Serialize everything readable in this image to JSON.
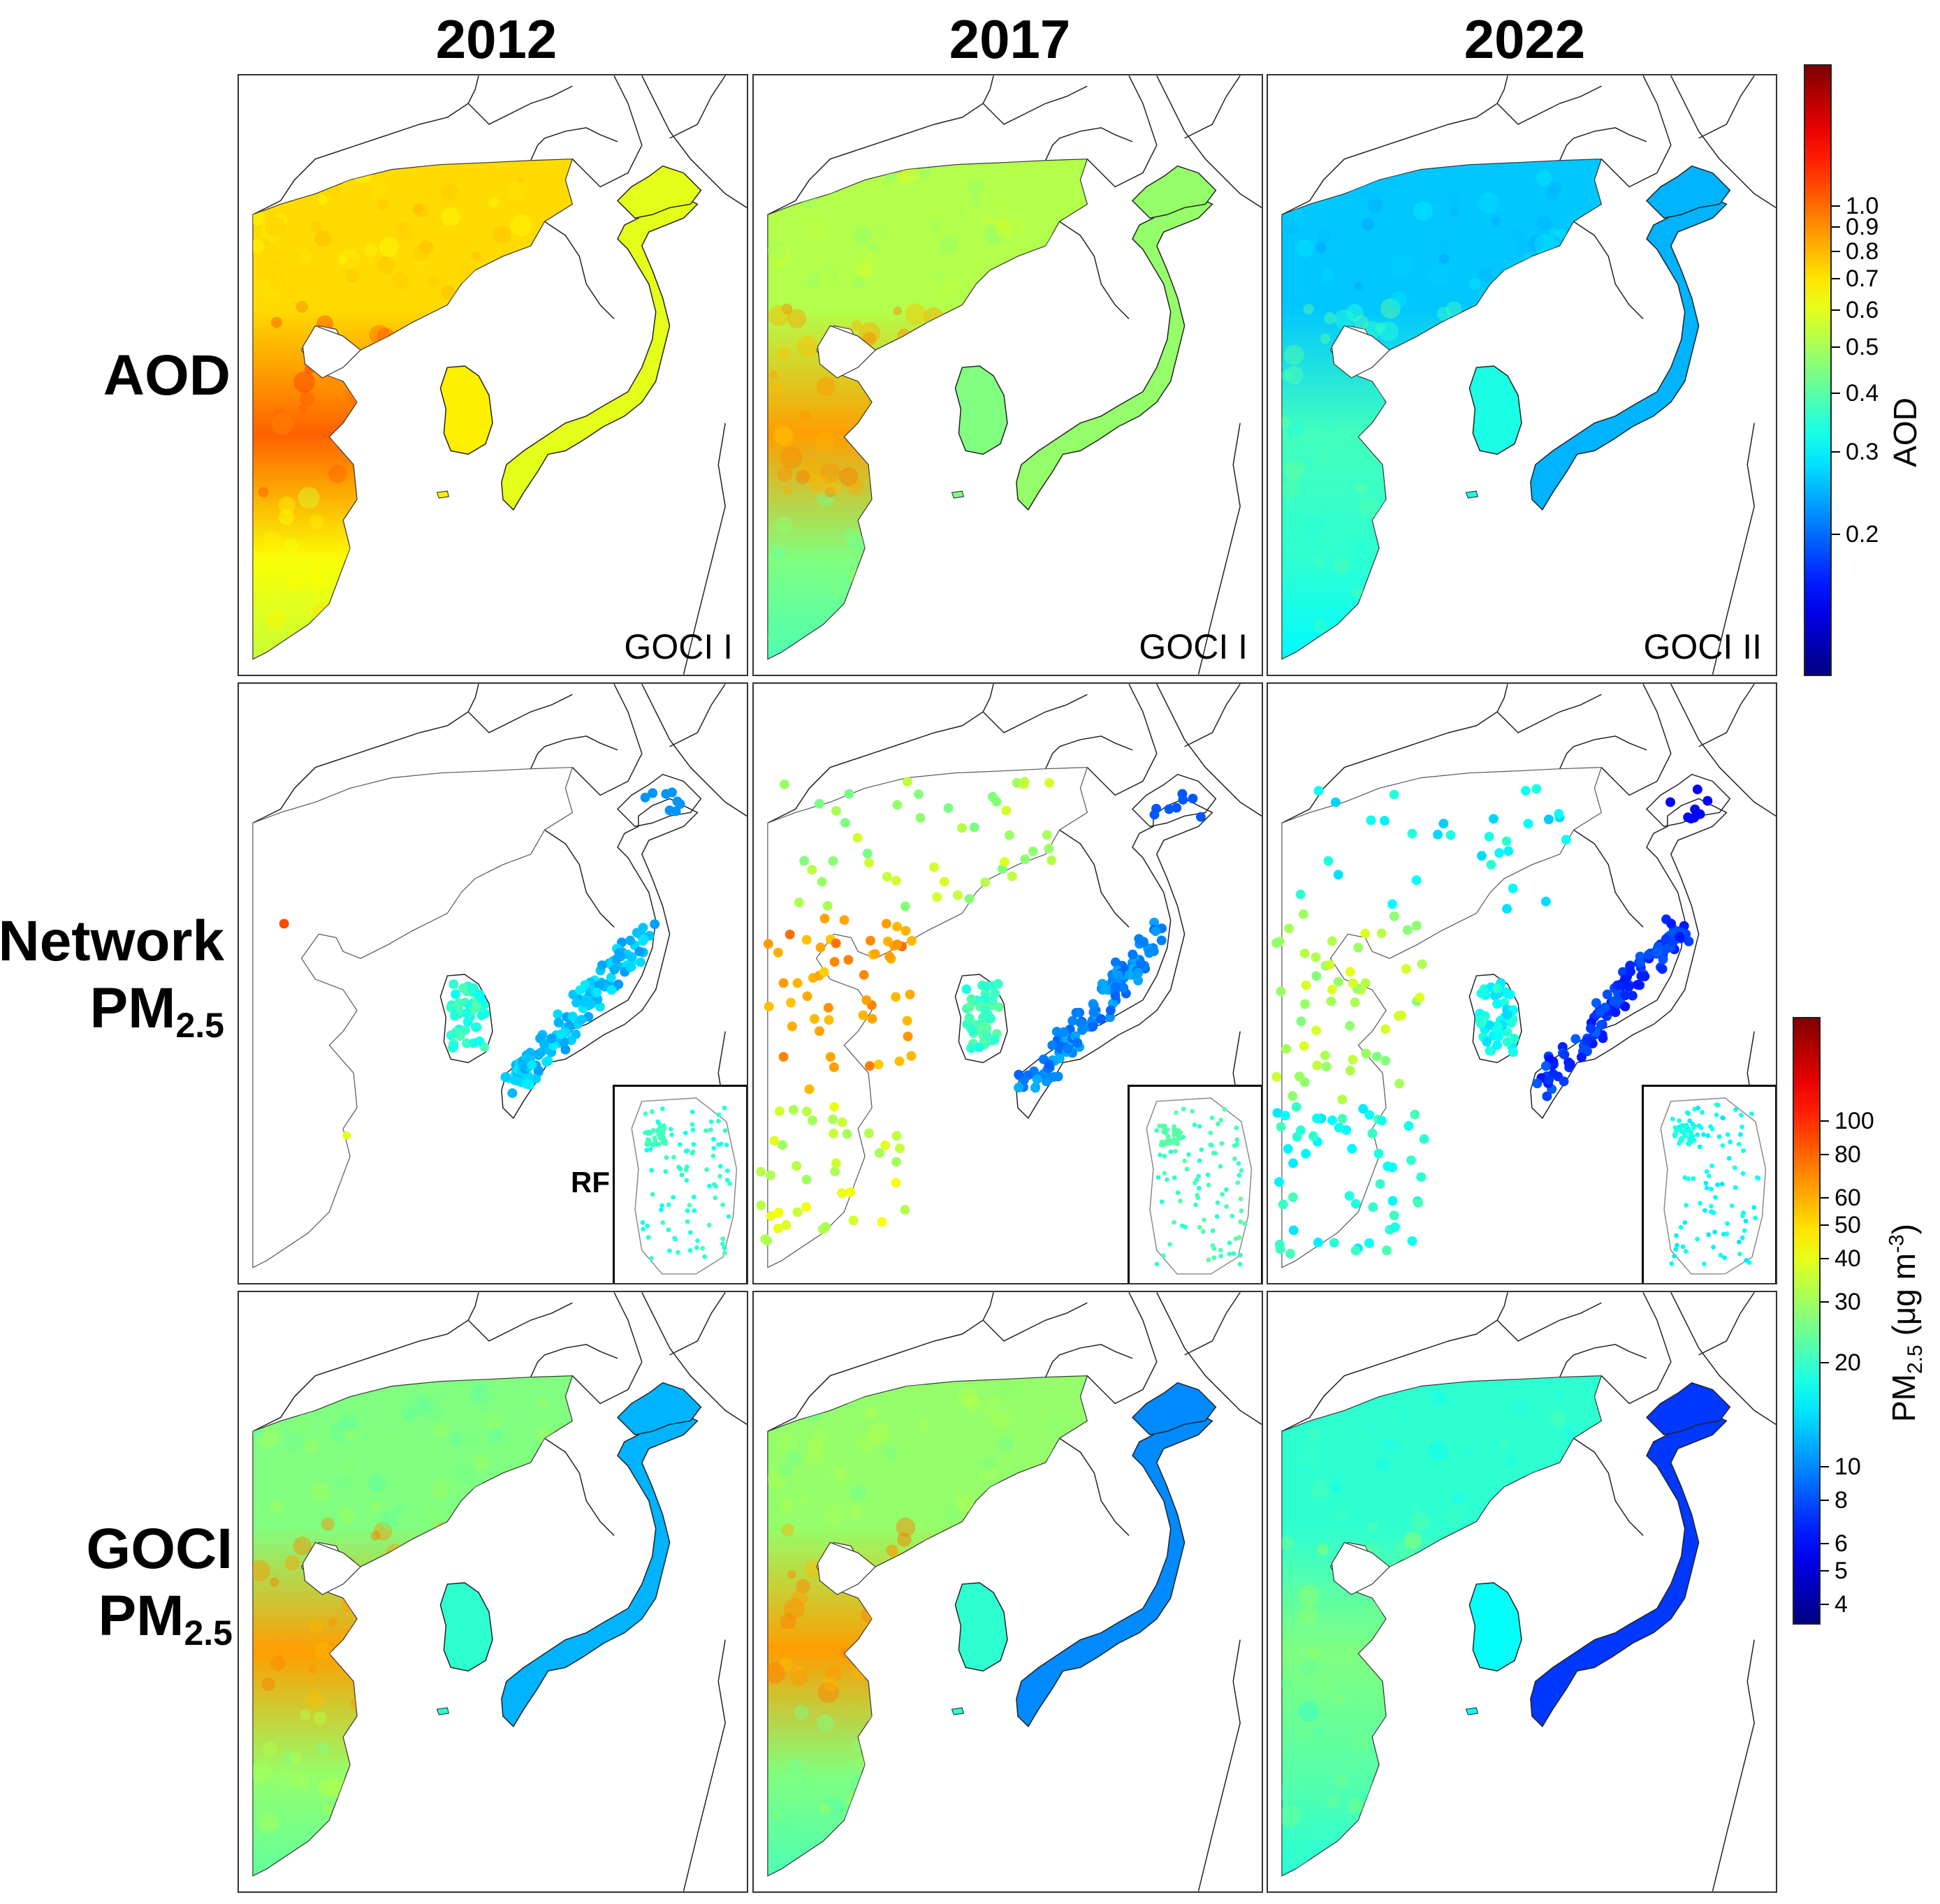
{
  "columns": [
    "2012",
    "2017",
    "2022"
  ],
  "rows": {
    "aod": {
      "label": "AOD"
    },
    "network": {
      "label_line1": "Network",
      "label_pm": "PM",
      "label_sub": "2.5"
    },
    "goci": {
      "label_line1": "GOCI",
      "label_pm": "PM",
      "label_sub": "2.5"
    }
  },
  "sensors": [
    "GOCI I",
    "GOCI I",
    "GOCI II"
  ],
  "inset_label": "RF",
  "colorbar_aod": {
    "title": "AOD",
    "scale": "log",
    "range": [
      0.1,
      2.0
    ],
    "ticks": [
      "1.0",
      "0.9",
      "0.8",
      "0.7",
      "0.6",
      "0.5",
      "0.4",
      "0.3",
      "0.2"
    ],
    "tick_values": [
      1.0,
      0.9,
      0.8,
      0.7,
      0.6,
      0.5,
      0.4,
      0.3,
      0.2
    ]
  },
  "colorbar_pm": {
    "title_pm": "PM",
    "title_sub": "2.5",
    "title_unit": " (μg m",
    "title_sup": "-3",
    "title_end": ")",
    "scale": "log",
    "range": [
      3.5,
      200
    ],
    "ticks": [
      "100",
      "80",
      "60",
      "50",
      "40",
      "30",
      "20",
      "10",
      "8",
      "6",
      "5",
      "4"
    ],
    "tick_values": [
      100,
      80,
      60,
      50,
      40,
      30,
      20,
      10,
      8,
      6,
      5,
      4
    ]
  },
  "colormap": "jet",
  "panels": {
    "aod": [
      {
        "china_north": 0.66,
        "china_mid": 0.78,
        "china_south": 0.62,
        "korea": 0.64,
        "japan": 0.6
      },
      {
        "china_north": 0.55,
        "china_mid": 0.72,
        "china_south": 0.5,
        "korea": 0.5,
        "japan": 0.52
      },
      {
        "china_north": 0.32,
        "china_mid": 0.44,
        "china_south": 0.42,
        "korea": 0.4,
        "japan": 0.3
      }
    ],
    "goci_pm": [
      {
        "china_north": 0.5,
        "china_mid": 0.72,
        "china_south": 0.52,
        "korea": 0.42,
        "japan": 0.3
      },
      {
        "china_north": 0.52,
        "china_mid": 0.72,
        "china_south": 0.5,
        "korea": 0.42,
        "japan": 0.26
      },
      {
        "china_north": 0.42,
        "china_mid": 0.5,
        "china_south": 0.46,
        "korea": 0.38,
        "japan": 0.18
      }
    ],
    "network_levels": [
      {
        "china": null,
        "korea": 0.42,
        "japan": 0.32
      },
      {
        "china": 0.72,
        "korea": 0.44,
        "japan": 0.26
      },
      {
        "china": 0.55,
        "korea": 0.38,
        "japan": 0.18
      }
    ]
  }
}
